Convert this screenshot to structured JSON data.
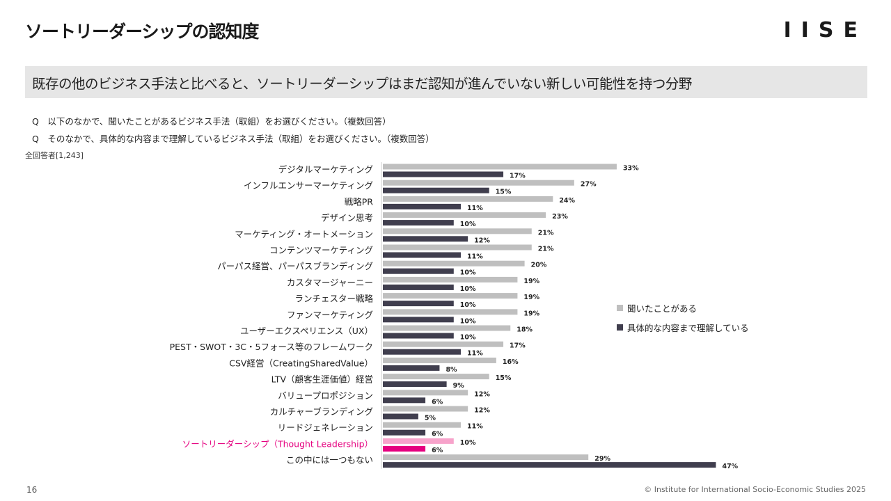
{
  "header": {
    "title": "ソートリーダーシップの認知度",
    "logo": "IISE"
  },
  "subtitle": "既存の他のビジネス手法と比べると、ソートリーダーシップはまだ認知が進んでいない新しい可能性を持つ分野",
  "questions": [
    "Q　以下のなかで、聞いたことがあるビジネス手法（取組）をお選びください。（複数回答）",
    "Q　そのなかで、具体的な内容まで理解しているビジネス手法（取組）をお選びください。（複数回答）"
  ],
  "base_note": "全回答者[1,243]",
  "chart_data": {
    "type": "bar",
    "orientation": "horizontal",
    "categories": [
      "デジタルマーケティング",
      "インフルエンサーマーケティング",
      "戦略PR",
      "デザイン思考",
      "マーケティング・オートメーション",
      "コンテンツマーケティング",
      "パーパス経営、パーパスブランディング",
      "カスタマージャーニー",
      "ランチェスター戦略",
      "ファンマーケティング",
      "ユーザーエクスペリエンス（UX）",
      "PEST・SWOT・3C・5フォース等のフレームワーク",
      "CSV経営（CreatingSharedValue）",
      "LTV（顧客生涯価値）経営",
      "バリュープロポジション",
      "カルチャーブランディング",
      "リードジェネレーション",
      "ソートリーダーシップ（Thought Leadership）",
      "この中には一つもない"
    ],
    "series": [
      {
        "name": "聞いたことがある",
        "values": [
          33,
          27,
          24,
          23,
          21,
          21,
          20,
          19,
          19,
          19,
          18,
          17,
          16,
          15,
          12,
          12,
          11,
          10,
          29
        ],
        "labels": [
          "33%",
          "27%",
          "24%",
          "23%",
          "21%",
          "21%",
          "20%",
          "19%",
          "19%",
          "19%",
          "18%",
          "17%",
          "16%",
          "15%",
          "12%",
          "12%",
          "11%",
          "10%",
          "29%"
        ],
        "color": "#bfbfbf"
      },
      {
        "name": "具体的な内容まで理解している",
        "values": [
          17,
          15,
          11,
          10,
          12,
          11,
          10,
          10,
          10,
          10,
          10,
          11,
          8,
          9,
          6,
          5,
          6,
          6,
          47
        ],
        "labels": [
          "17%",
          "15%",
          "11%",
          "10%",
          "12%",
          "11%",
          "10%",
          "10%",
          "10%",
          "10%",
          "10%",
          "11%",
          "8%",
          "9%",
          "6%",
          "5%",
          "6%",
          "6%",
          "47%"
        ],
        "color": "#403e4e"
      }
    ],
    "highlight": {
      "category": "ソートリーダーシップ（Thought Leadership）",
      "label_color": "#e5007f",
      "colors": [
        "#f7a3cb",
        "#e5007f"
      ]
    },
    "unit": "%",
    "legend_position": "right"
  },
  "footer": {
    "page_number": "16",
    "copyright": "© Institute for International Socio-Economic Studies 2025"
  }
}
